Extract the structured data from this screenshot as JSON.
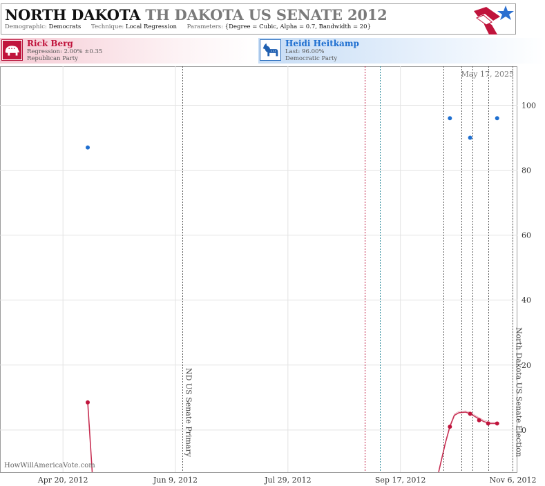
{
  "header": {
    "title_state": "NORTH DAKOTA",
    "title_race": "TH DAKOTA US SENATE 2012",
    "demographic_label": "Demographic:",
    "demographic_value": "Democrats",
    "technique_label": "Technique:",
    "technique_value": "Local Regression",
    "parameters_label": "Parameters:",
    "parameters_value": "{Degree = Cubic, Alpha = 0.7, Bandwidth = 20}"
  },
  "candidates": {
    "rep": {
      "name": "Rick Berg",
      "line1": "Regression: 2.00% ±0.35",
      "line2": "Republican Party",
      "icon": "elephant-icon",
      "color": "#c0143c"
    },
    "dem": {
      "name": "Heidi Heitkamp",
      "line1": "Last: 96.00%",
      "line2": "Democratic Party",
      "icon": "donkey-icon",
      "color": "#1f6fd0"
    }
  },
  "chart_data": {
    "type": "scatter",
    "date_stamp": "May 17, 2025",
    "watermark": "HowWillAmericaVote.com",
    "x_ticks": [
      "Apr 20, 2012",
      "Jun 9, 2012",
      "Jul 29, 2012",
      "Sep 17, 2012",
      "Nov 6, 2012"
    ],
    "xlim": [
      "2012-03-23",
      "2012-11-08"
    ],
    "y_ticks": [
      0,
      20,
      40,
      60,
      80,
      100
    ],
    "ylim": [
      -13,
      112
    ],
    "grid": true,
    "events": [
      {
        "date": "2012-06-12",
        "label": "ND US Senate Primary",
        "color": "#555555"
      },
      {
        "date": "2012-09-01",
        "label": "",
        "color": "#c0143c"
      },
      {
        "date": "2012-09-08",
        "label": "",
        "color": "#2a8a9a"
      },
      {
        "date": "2012-10-06",
        "label": "",
        "color": "#555555"
      },
      {
        "date": "2012-10-14",
        "label": "",
        "color": "#555555"
      },
      {
        "date": "2012-10-19",
        "label": "",
        "color": "#555555"
      },
      {
        "date": "2012-10-26",
        "label": "",
        "color": "#555555"
      },
      {
        "date": "2012-11-06",
        "label": "North Dakota US Senate Election",
        "color": "#555555"
      }
    ],
    "series": [
      {
        "name": "Heidi Heitkamp",
        "kind": "points",
        "color": "#1f6fd0",
        "points": [
          {
            "x": "2012-05-01",
            "y": 87
          },
          {
            "x": "2012-10-09",
            "y": 96
          },
          {
            "x": "2012-10-18",
            "y": 90
          },
          {
            "x": "2012-10-30",
            "y": 96
          }
        ]
      },
      {
        "name": "Rick Berg",
        "kind": "points",
        "color": "#c0143c",
        "points": [
          {
            "x": "2012-05-01",
            "y": 8.5
          },
          {
            "x": "2012-10-09",
            "y": 1
          },
          {
            "x": "2012-10-18",
            "y": 5
          },
          {
            "x": "2012-10-22",
            "y": 3
          },
          {
            "x": "2012-10-26",
            "y": 2
          },
          {
            "x": "2012-10-30",
            "y": 2
          }
        ]
      },
      {
        "name": "Rick Berg regression",
        "kind": "line",
        "color": "#c0143c",
        "segments": [
          [
            {
              "x": "2012-05-01",
              "y": 8.5
            },
            {
              "x": "2012-05-03",
              "y": -13
            }
          ],
          [
            {
              "x": "2012-10-04",
              "y": -13
            },
            {
              "x": "2012-10-07",
              "y": -4
            },
            {
              "x": "2012-10-09",
              "y": 1
            },
            {
              "x": "2012-10-11",
              "y": 4.5
            },
            {
              "x": "2012-10-13",
              "y": 5.3
            },
            {
              "x": "2012-10-16",
              "y": 5.5
            },
            {
              "x": "2012-10-18",
              "y": 5
            },
            {
              "x": "2012-10-21",
              "y": 3.8
            },
            {
              "x": "2012-10-24",
              "y": 2.6
            },
            {
              "x": "2012-10-27",
              "y": 2
            },
            {
              "x": "2012-10-30",
              "y": 2
            }
          ]
        ]
      }
    ]
  }
}
